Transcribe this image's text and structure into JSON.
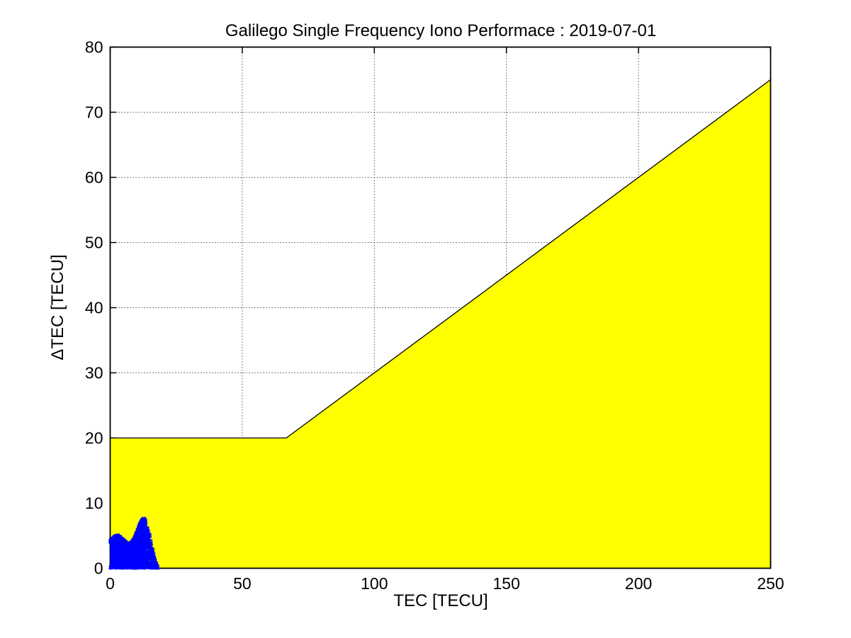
{
  "figure": {
    "background": "#ffffff",
    "axes_color": "#000000"
  },
  "chart_data": {
    "type": "scatter",
    "title": "Galilego Single Frequency Iono Performace : 2019-07-01",
    "xlabel": "TEC [TECU]",
    "ylabel": "ΔTEC [TECU]",
    "xlim": [
      0,
      250
    ],
    "ylim": [
      0,
      80
    ],
    "xticks": [
      0,
      50,
      100,
      150,
      200,
      250
    ],
    "yticks": [
      0,
      10,
      20,
      30,
      40,
      50,
      60,
      70,
      80
    ],
    "grid": "dotted",
    "grid_color": "#000000",
    "legend": "none",
    "threshold_region": {
      "description": "single-frequency iono error bound, flat 20 TECU then 0.3*TEC",
      "fill_color": "#ffff00",
      "edge_color": "#000000",
      "boundary_points": [
        [
          0,
          20
        ],
        [
          66.67,
          20
        ],
        [
          250,
          75
        ]
      ]
    },
    "scatter": {
      "description": "dense cluster of measured deltaTEC vs TEC points near origin",
      "color": "#0000ff",
      "marker": "x-point",
      "x_range": [
        0,
        18
      ],
      "y_range": [
        0,
        7.5
      ],
      "dense_until_x": 13.5,
      "envelope": [
        [
          0,
          4.0
        ],
        [
          1,
          4.4
        ],
        [
          2,
          4.7
        ],
        [
          3,
          4.8
        ],
        [
          4,
          4.5
        ],
        [
          5,
          4.1
        ],
        [
          6,
          3.8
        ],
        [
          7,
          3.5
        ],
        [
          8,
          3.7
        ],
        [
          9,
          4.3
        ],
        [
          10,
          5.3
        ],
        [
          11,
          6.4
        ],
        [
          12,
          7.2
        ],
        [
          12.8,
          7.4
        ],
        [
          13.5,
          7.0
        ],
        [
          14,
          6.5
        ],
        [
          14.5,
          5.8
        ],
        [
          15,
          5.2
        ],
        [
          15.5,
          4.3
        ],
        [
          16,
          3.4
        ],
        [
          16.5,
          2.4
        ],
        [
          17,
          1.4
        ],
        [
          17.5,
          0.7
        ],
        [
          18,
          0.3
        ]
      ]
    }
  }
}
